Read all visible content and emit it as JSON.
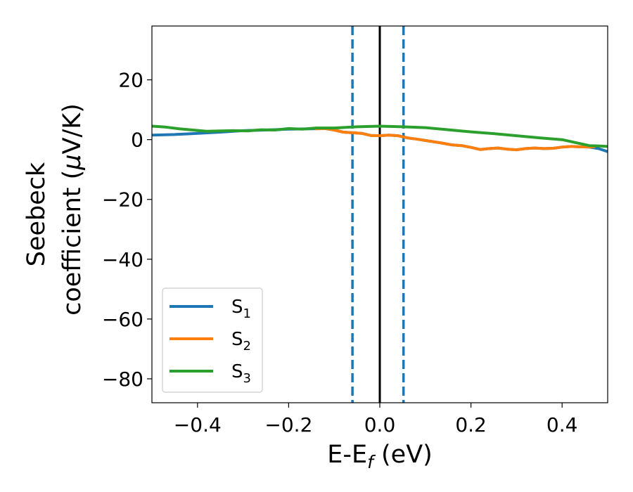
{
  "chart_data": {
    "type": "line",
    "xlabel": {
      "main": "E-E",
      "sub": "f",
      "unit": " (eV)"
    },
    "ylabel": {
      "line1": "Seebeck",
      "line2": "coefficient  (",
      "mu": "μ",
      "unit": "V/K)"
    },
    "xlim": [
      -0.5,
      0.5
    ],
    "ylim": [
      -88,
      38
    ],
    "xticks": [
      -0.4,
      -0.2,
      0.0,
      0.2,
      0.4
    ],
    "xtick_labels": [
      "−0.4",
      "−0.2",
      "0.0",
      "0.2",
      "0.4"
    ],
    "yticks": [
      20,
      0,
      -20,
      -40,
      -60,
      -80
    ],
    "ytick_labels": [
      "20",
      "0",
      "−20",
      "−40",
      "−60",
      "−80"
    ],
    "grid": false,
    "legend_position": "lower-left",
    "vertical_lines": [
      {
        "x": -0.06,
        "style": "dashed",
        "color": "#1f77b4"
      },
      {
        "x": 0.0,
        "style": "solid",
        "color": "#000000"
      },
      {
        "x": 0.052,
        "style": "dashed",
        "color": "#1f77b4"
      }
    ],
    "series": [
      {
        "name": "S",
        "sub": "1",
        "color": "#1f77b4",
        "x": [
          -0.5,
          -0.45,
          -0.4,
          -0.35,
          -0.3,
          -0.25,
          -0.2,
          -0.15,
          -0.12,
          -0.1,
          -0.08,
          -0.06,
          -0.04,
          -0.02,
          0.0,
          0.02,
          0.04,
          0.06,
          0.08,
          0.1,
          0.13,
          0.16,
          0.18,
          0.2,
          0.22,
          0.24,
          0.26,
          0.28,
          0.3,
          0.32,
          0.34,
          0.36,
          0.38,
          0.4,
          0.42,
          0.44,
          0.46,
          0.48,
          0.5
        ],
        "y": [
          1.5,
          1.7,
          2.1,
          2.5,
          3.0,
          3.2,
          3.5,
          3.6,
          3.7,
          3.2,
          2.5,
          2.3,
          2.1,
          1.4,
          1.3,
          1.5,
          1.3,
          0.6,
          0.2,
          -0.3,
          -1.0,
          -1.8,
          -2.0,
          -2.6,
          -3.3,
          -3.0,
          -2.8,
          -3.2,
          -3.4,
          -3.0,
          -2.8,
          -3.0,
          -2.9,
          -2.5,
          -2.3,
          -2.4,
          -2.5,
          -3.0,
          -4.0
        ]
      },
      {
        "name": "S",
        "sub": "2",
        "color": "#ff7f0e",
        "x": [
          -0.14,
          -0.12,
          -0.1,
          -0.08,
          -0.06,
          -0.04,
          -0.02,
          0.0,
          0.02,
          0.04,
          0.06,
          0.08,
          0.1,
          0.13,
          0.16,
          0.18,
          0.2,
          0.22,
          0.24,
          0.26,
          0.28,
          0.3,
          0.32,
          0.34,
          0.36,
          0.38,
          0.4,
          0.42,
          0.44,
          0.46,
          0.47
        ],
        "y": [
          3.6,
          3.7,
          3.2,
          2.5,
          2.3,
          2.1,
          1.4,
          1.3,
          1.5,
          1.3,
          0.6,
          0.2,
          -0.3,
          -1.0,
          -1.8,
          -2.0,
          -2.6,
          -3.3,
          -3.0,
          -2.8,
          -3.2,
          -3.4,
          -3.0,
          -2.8,
          -3.0,
          -2.9,
          -2.5,
          -2.3,
          -2.4,
          -2.5,
          -2.4
        ]
      },
      {
        "name": "S",
        "sub": "3",
        "color": "#2ca02c",
        "x": [
          -0.5,
          -0.47,
          -0.44,
          -0.41,
          -0.38,
          -0.35,
          -0.32,
          -0.29,
          -0.26,
          -0.23,
          -0.2,
          -0.17,
          -0.14,
          -0.1,
          -0.05,
          0.0,
          0.05,
          0.1,
          0.15,
          0.2,
          0.25,
          0.3,
          0.35,
          0.4,
          0.43,
          0.46,
          0.48,
          0.5
        ],
        "y": [
          4.5,
          4.2,
          3.6,
          3.2,
          2.8,
          2.9,
          3.0,
          2.9,
          3.3,
          3.2,
          3.7,
          3.5,
          3.9,
          3.9,
          4.3,
          4.5,
          4.3,
          4.0,
          3.3,
          2.6,
          2.0,
          1.3,
          0.6,
          0.0,
          -1.0,
          -2.0,
          -2.1,
          -2.3
        ]
      }
    ]
  }
}
